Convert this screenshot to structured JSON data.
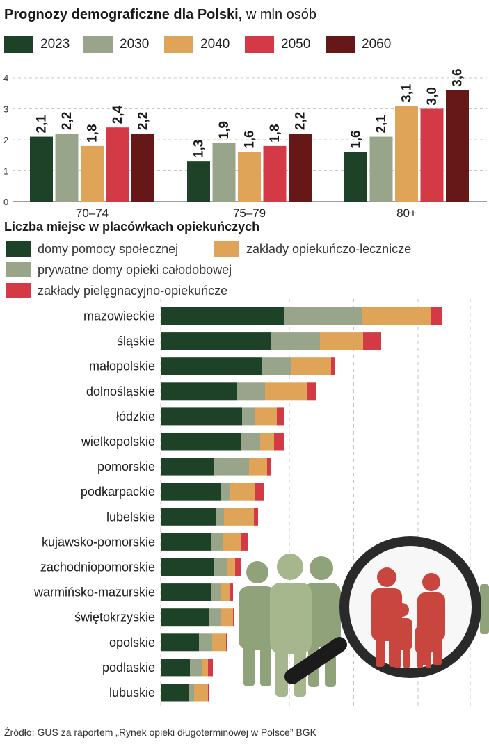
{
  "colors": {
    "c2023": "#1e4227",
    "c2030": "#98a58b",
    "c2040": "#e0a458",
    "c2050": "#d43a45",
    "c2060": "#661818",
    "domy": "#1e4227",
    "prywatne": "#98a58b",
    "zaklady_ol": "#e0a458",
    "zaklady_po": "#d43a45",
    "people_green": "#8fa27a",
    "people_red": "#c9463e",
    "lens_frame": "#2a2a2a"
  },
  "chart_data": [
    {
      "type": "bar",
      "title_bold": "Prognozy demograficzne dla Polski,",
      "title_rest": " w mln osób",
      "categories": [
        "70–74",
        "75–79",
        "80+"
      ],
      "series": [
        {
          "name": "2023",
          "values": [
            2.1,
            1.3,
            1.6
          ],
          "labels": [
            "2,1",
            "1,3",
            "1,6"
          ]
        },
        {
          "name": "2030",
          "values": [
            2.2,
            1.9,
            2.1
          ],
          "labels": [
            "2,2",
            "1,9",
            "2,1"
          ]
        },
        {
          "name": "2040",
          "values": [
            1.8,
            1.6,
            3.1
          ],
          "labels": [
            "1,8",
            "1,6",
            "3,1"
          ]
        },
        {
          "name": "2050",
          "values": [
            2.4,
            1.8,
            3.0
          ],
          "labels": [
            "2,4",
            "1,8",
            "3,0"
          ]
        },
        {
          "name": "2060",
          "values": [
            2.2,
            2.2,
            3.6
          ],
          "labels": [
            "2,2",
            "2,2",
            "3,6"
          ]
        }
      ],
      "yticks": [
        "0",
        "1",
        "2",
        "3",
        "4"
      ],
      "ylim": [
        0,
        4
      ],
      "grid": true
    },
    {
      "type": "bar",
      "orientation": "horizontal",
      "stacked": true,
      "title": "Liczba miejsc w placówkach opiekuńczych",
      "grid": true,
      "categories": [
        "mazowieckie",
        "śląskie",
        "małopolskie",
        "dolnośląskie",
        "łódzkie",
        "wielkopolskie",
        "pomorskie",
        "podkarpackie",
        "lubelskie",
        "kujawsko-pomorskie",
        "zachodniopomorskie",
        "warmińsko-mazurskie",
        "świętokrzyskie",
        "opolskie",
        "podlaskie",
        "lubuskie"
      ],
      "series": [
        {
          "name": "domy pomocy społecznej",
          "values": [
            177,
            159,
            145,
            109,
            117,
            116,
            77,
            87,
            79,
            73,
            76,
            73,
            69,
            55,
            42,
            40
          ]
        },
        {
          "name": "prywatne domy opieki całodobowej",
          "values": [
            113,
            70,
            42,
            41,
            19,
            27,
            50,
            13,
            12,
            16,
            19,
            14,
            17,
            19,
            18,
            8
          ]
        },
        {
          "name": "zakłady opiekuńczo-lecznicze",
          "values": [
            98,
            62,
            58,
            61,
            31,
            20,
            26,
            35,
            43,
            27,
            12,
            13,
            18,
            20,
            8,
            20
          ]
        },
        {
          "name": "zakłady pielęgnacyjno-opiekuńcze",
          "values": [
            17,
            26,
            5,
            12,
            11,
            14,
            5,
            13,
            6,
            10,
            9,
            4,
            2,
            1,
            7,
            2
          ]
        }
      ],
      "xlim": [
        0,
        470
      ]
    }
  ],
  "source": "Źródło: GUS za raportem „Rynek opieki długoterminowej w Polsce” BGK"
}
